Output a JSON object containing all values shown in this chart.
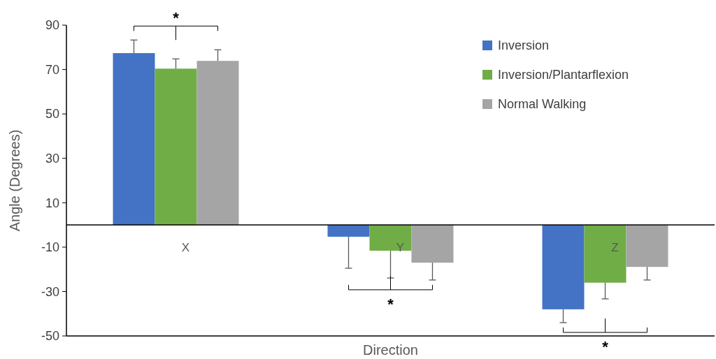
{
  "chart_data": {
    "type": "bar",
    "xlabel": "Direction",
    "ylabel": "Angle (Degrees)",
    "categories": [
      "X",
      "Y",
      "Z"
    ],
    "series": [
      {
        "name": "Inversion",
        "color": "#4472c4",
        "values": [
          77.4,
          -5.3,
          -38
        ],
        "errors": [
          [
            77.4,
            83.3
          ],
          [
            -19.5,
            -5.3
          ],
          [
            -44,
            -38
          ]
        ]
      },
      {
        "name": "Inversion/Plantarflexion",
        "color": "#70ad47",
        "values": [
          70.4,
          -11.6,
          -26
        ],
        "errors": [
          [
            70.4,
            74.8
          ],
          [
            -23.9,
            -11.6
          ],
          [
            -33.3,
            -26
          ]
        ]
      },
      {
        "name": "Normal Walking",
        "color": "#a5a5a5",
        "values": [
          73.9,
          -17,
          -18.9
        ],
        "errors": [
          [
            73.9,
            78.9
          ],
          [
            -24.8,
            -17
          ],
          [
            -24.8,
            -18.9
          ]
        ]
      }
    ],
    "ylim": [
      -50,
      90
    ],
    "yticks": [
      -50,
      -30,
      -10,
      10,
      30,
      50,
      70,
      90
    ],
    "grid": false,
    "legend": "top right",
    "annotations": [
      "*",
      "*",
      "*"
    ]
  }
}
